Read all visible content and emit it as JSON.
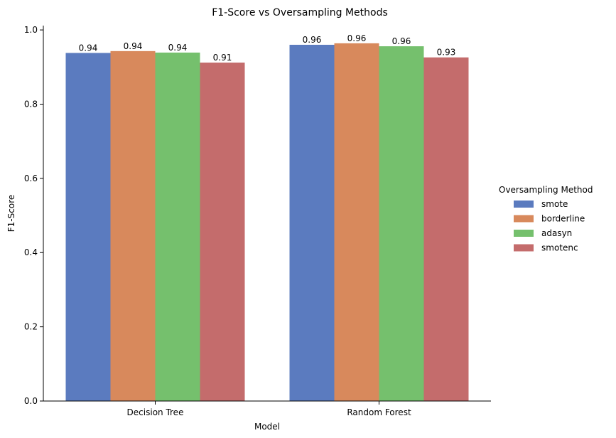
{
  "chart_data": {
    "type": "bar",
    "title": "F1-Score vs Oversampling Methods",
    "xlabel": "Model",
    "ylabel": "F1-Score",
    "categories": [
      "Decision Tree",
      "Random Forest"
    ],
    "ylim": [
      0,
      1.0
    ],
    "yticks": [
      "0.0",
      "0.2",
      "0.4",
      "0.6",
      "0.8",
      "1.0"
    ],
    "series": [
      {
        "name": "smote",
        "color": "#5b7bbf",
        "values": [
          0.938,
          0.96
        ],
        "labels": [
          "0.94",
          "0.96"
        ]
      },
      {
        "name": "borderline",
        "color": "#d8895c",
        "values": [
          0.943,
          0.964
        ],
        "labels": [
          "0.94",
          "0.96"
        ]
      },
      {
        "name": "adasyn",
        "color": "#75c06d",
        "values": [
          0.939,
          0.956
        ],
        "labels": [
          "0.94",
          "0.96"
        ]
      },
      {
        "name": "smotenc",
        "color": "#c46c6c",
        "values": [
          0.912,
          0.926
        ],
        "labels": [
          "0.91",
          "0.93"
        ]
      }
    ],
    "legend": {
      "title": "Oversampling Method",
      "placement": "right"
    },
    "grid": false
  }
}
